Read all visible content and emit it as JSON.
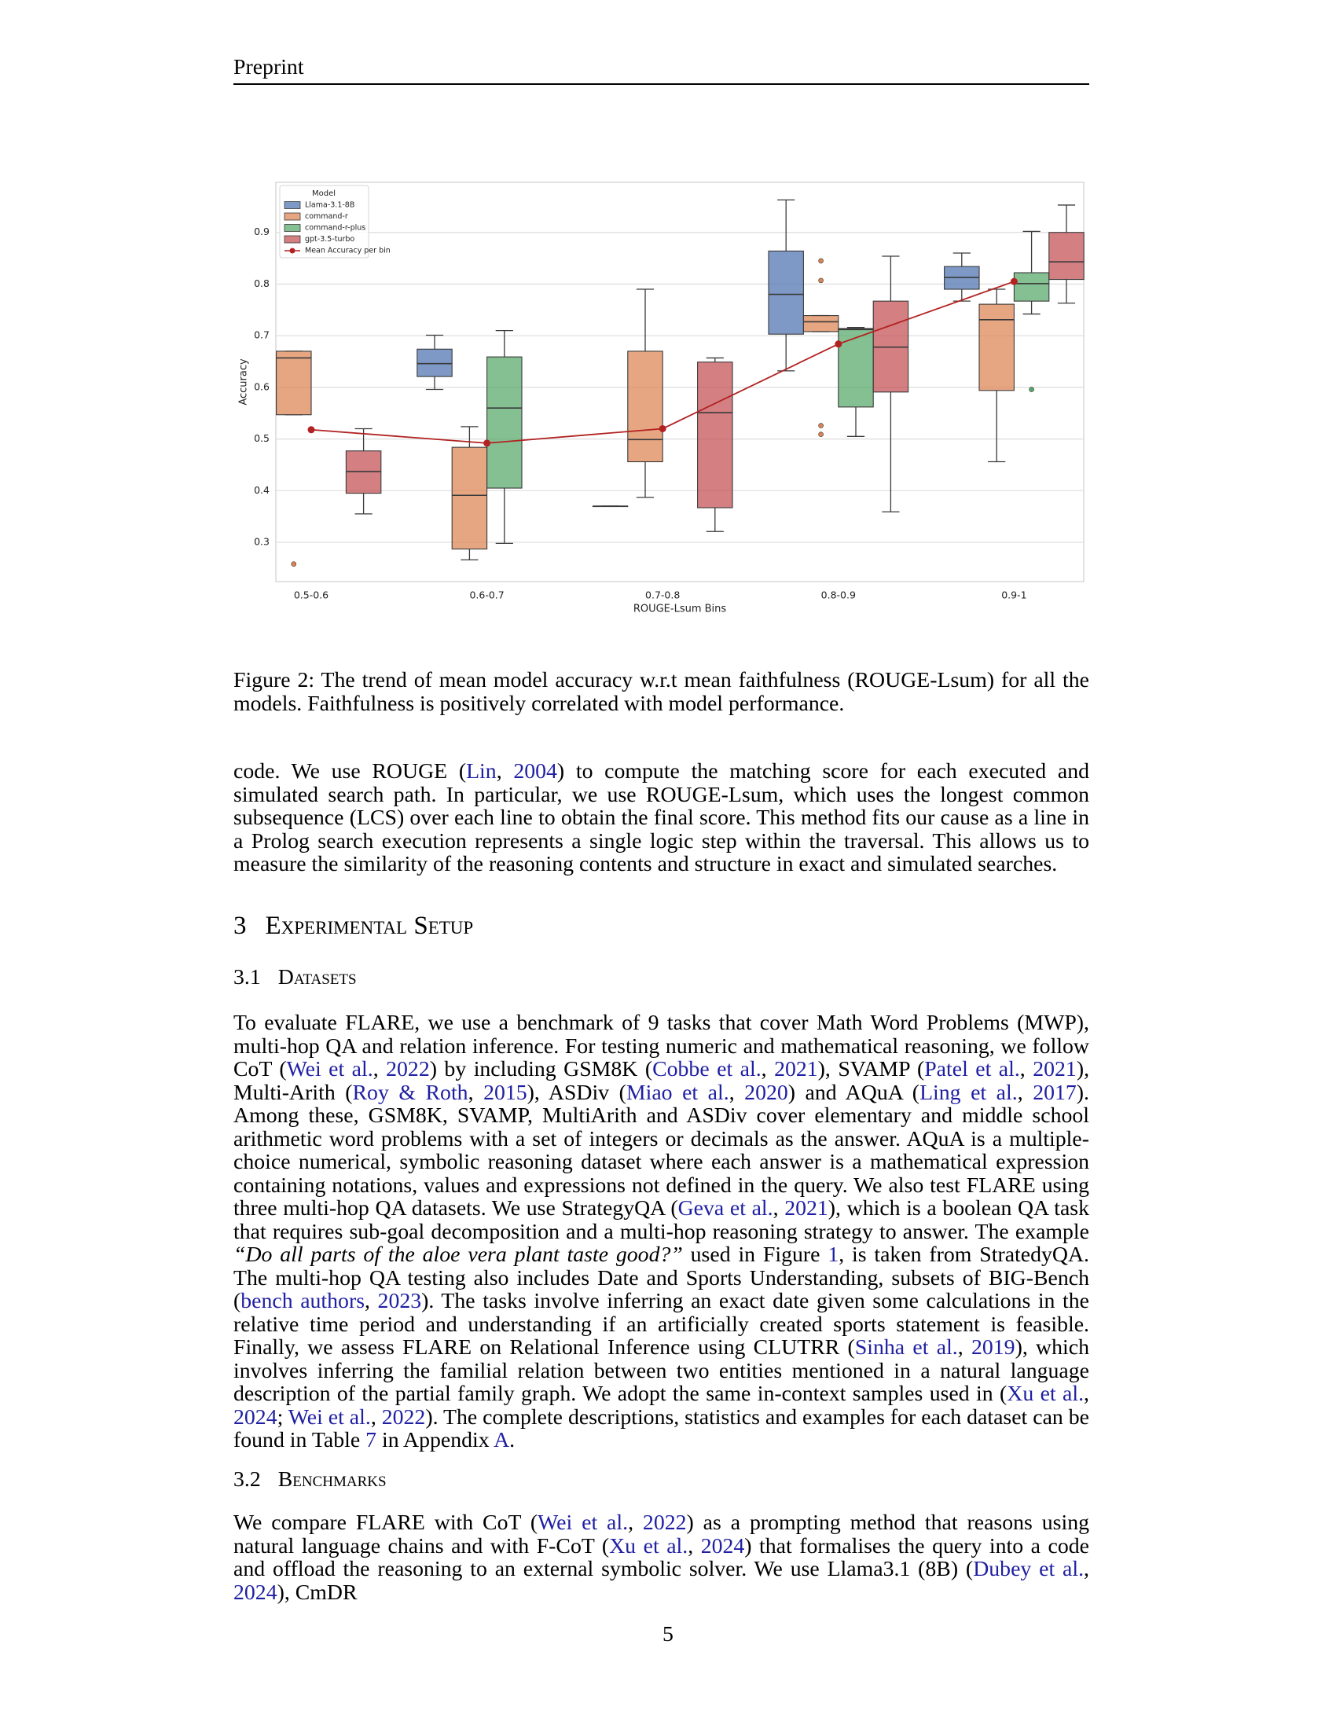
{
  "header": {
    "title": "Preprint"
  },
  "chart_data": {
    "type": "box",
    "x_label": "ROUGE-Lsum Bins",
    "y_label": "Accuracy",
    "categories": [
      "0.5-0.6",
      "0.6-0.7",
      "0.7-0.8",
      "0.8-0.9",
      "0.9-1"
    ],
    "ylim": [
      0.224,
      0.997
    ],
    "yticks": [
      0.3,
      0.4,
      0.5,
      0.6,
      0.7,
      0.8,
      0.9
    ],
    "grid": true,
    "legend": {
      "title": "Model",
      "position": "upper left"
    },
    "series": [
      {
        "name": "Llama-3.1-8B",
        "color": "#4c72b0",
        "boxes": [
          null,
          {
            "min": 0.596,
            "q1": 0.621,
            "median": 0.646,
            "q3": 0.674,
            "max": 0.701,
            "outliers": []
          },
          {
            "min": 0.37,
            "q1": 0.37,
            "median": 0.37,
            "q3": 0.37,
            "max": 0.37,
            "outliers": []
          },
          {
            "min": 0.632,
            "q1": 0.703,
            "median": 0.78,
            "q3": 0.864,
            "max": 0.963,
            "outliers": []
          },
          {
            "min": 0.767,
            "q1": 0.79,
            "median": 0.813,
            "q3": 0.834,
            "max": 0.86,
            "outliers": []
          }
        ]
      },
      {
        "name": "command-r",
        "color": "#dd8452",
        "boxes": [
          {
            "min": 0.547,
            "q1": 0.547,
            "median": 0.657,
            "q3": 0.67,
            "max": 0.67,
            "outliers": [
              0.258
            ]
          },
          {
            "min": 0.266,
            "q1": 0.287,
            "median": 0.391,
            "q3": 0.484,
            "max": 0.524,
            "outliers": []
          },
          {
            "min": 0.387,
            "q1": 0.456,
            "median": 0.499,
            "q3": 0.67,
            "max": 0.79,
            "outliers": []
          },
          {
            "min": 0.708,
            "q1": 0.708,
            "median": 0.727,
            "q3": 0.739,
            "max": 0.739,
            "outliers": [
              0.845,
              0.807,
              0.526,
              0.509
            ]
          },
          {
            "min": 0.456,
            "q1": 0.594,
            "median": 0.731,
            "q3": 0.761,
            "max": 0.79,
            "outliers": []
          }
        ]
      },
      {
        "name": "command-r-plus",
        "color": "#55a868",
        "boxes": [
          null,
          {
            "min": 0.298,
            "q1": 0.405,
            "median": 0.56,
            "q3": 0.659,
            "max": 0.71,
            "outliers": []
          },
          null,
          {
            "min": 0.505,
            "q1": 0.562,
            "median": 0.712,
            "q3": 0.714,
            "max": 0.716,
            "outliers": []
          },
          {
            "min": 0.742,
            "q1": 0.767,
            "median": 0.801,
            "q3": 0.822,
            "max": 0.902,
            "outliers": [
              0.596
            ]
          }
        ]
      },
      {
        "name": "gpt-3.5-turbo",
        "color": "#c44e52",
        "boxes": [
          {
            "min": 0.355,
            "q1": 0.395,
            "median": 0.437,
            "q3": 0.477,
            "max": 0.52,
            "outliers": []
          },
          null,
          {
            "min": 0.321,
            "q1": 0.367,
            "median": 0.551,
            "q3": 0.649,
            "max": 0.657,
            "outliers": []
          },
          {
            "min": 0.359,
            "q1": 0.591,
            "median": 0.678,
            "q3": 0.767,
            "max": 0.854,
            "outliers": []
          },
          {
            "min": 0.763,
            "q1": 0.809,
            "median": 0.843,
            "q3": 0.9,
            "max": 0.953,
            "outliers": []
          }
        ]
      }
    ],
    "mean": {
      "name": "Mean Accuracy per bin",
      "color": "#b22222",
      "values": [
        0.518,
        0.492,
        0.52,
        0.684,
        0.805
      ]
    }
  },
  "caption": "Figure 2: The trend of mean model accuracy w.r.t mean faithfulness (ROUGE-Lsum) for all the models. Faithfulness is positively correlated with model performance.",
  "paragraph_1": [
    "code. We use ROUGE (",
    {
      "link": "Lin"
    },
    ", ",
    {
      "link": "2004"
    },
    ") to compute the matching score for each executed and simulated search path. In particular, we use ROUGE-Lsum, which uses the longest common subsequence (LCS) over each line to obtain the final score. This method fits our cause as a line in a Prolog search execution represents a single logic step within the traversal. This allows us to measure the similarity of the reasoning contents and structure in exact and simulated searches."
  ],
  "section": {
    "number": "3",
    "title": "Experimental Setup"
  },
  "subsection_1": {
    "number": "3.1",
    "title": "Datasets"
  },
  "paragraph_2": [
    "To evaluate FLARE, we use a benchmark of 9 tasks that cover Math Word Problems (MWP), multi-hop QA and relation inference. For testing numeric and mathematical reasoning, we follow CoT (",
    {
      "link": "Wei et al."
    },
    ", ",
    {
      "link": "2022"
    },
    ") by including GSM8K (",
    {
      "link": "Cobbe et al."
    },
    ", ",
    {
      "link": "2021"
    },
    "), SVAMP (",
    {
      "link": "Patel et al."
    },
    ", ",
    {
      "link": "2021"
    },
    "), Multi-Arith (",
    {
      "link": "Roy & Roth"
    },
    ", ",
    {
      "link": "2015"
    },
    "), ASDiv (",
    {
      "link": "Miao et al."
    },
    ", ",
    {
      "link": "2020"
    },
    ") and AQuA (",
    {
      "link": "Ling et al."
    },
    ", ",
    {
      "link": "2017"
    },
    "). Among these, GSM8K, SVAMP, MultiArith and ASDiv cover elementary and middle school arithmetic word problems with a set of integers or decimals as the answer. AQuA is a multiple-choice numerical, symbolic reasoning dataset where each answer is a mathematical expression containing notations, values and expressions not defined in the query. We also test FLARE using three multi-hop QA datasets. We use StrategyQA (",
    {
      "link": "Geva et al."
    },
    ", ",
    {
      "link": "2021"
    },
    "), which is a boolean QA task that requires sub-goal decomposition and a multi-hop reasoning strategy to answer. The example ",
    {
      "em": "“Do all parts of the aloe vera plant taste good?”"
    },
    " used in Figure ",
    {
      "link": "1"
    },
    ", is taken from StratedyQA. The multi-hop QA testing also includes Date and Sports Understanding, subsets of BIG-Bench (",
    {
      "link": "bench authors"
    },
    ", ",
    {
      "link": "2023"
    },
    "). The tasks involve inferring an exact date given some calculations in the relative time period and understanding if an artificially created sports statement is feasible. Finally, we assess FLARE on Relational Inference using CLUTRR (",
    {
      "link": "Sinha et al."
    },
    ", ",
    {
      "link": "2019"
    },
    "), which involves inferring the familial relation between two entities mentioned in a natural language description of the partial family graph. We adopt the same in-context samples used in (",
    {
      "link": "Xu et al."
    },
    ", ",
    {
      "link": "2024"
    },
    "; ",
    {
      "link": "Wei et al."
    },
    ", ",
    {
      "link": "2022"
    },
    "). The complete descriptions, statistics and examples for each dataset can be found in Table ",
    {
      "link": "7"
    },
    " in Appendix ",
    {
      "link": "A"
    },
    "."
  ],
  "subsection_2": {
    "number": "3.2",
    "title": "Benchmarks"
  },
  "paragraph_3": [
    "We compare FLARE with CoT (",
    {
      "link": "Wei et al."
    },
    ", ",
    {
      "link": "2022"
    },
    ") as a prompting method that reasons using natural language chains and with F-CoT (",
    {
      "link": "Xu et al."
    },
    ", ",
    {
      "link": "2024"
    },
    ") that formalises the query into a code and offload the reasoning to an external symbolic solver. We use Llama3.1 (8B) (",
    {
      "link": "Dubey et al."
    },
    ", ",
    {
      "link": "2024"
    },
    "), CmDR"
  ],
  "page_number": 5
}
